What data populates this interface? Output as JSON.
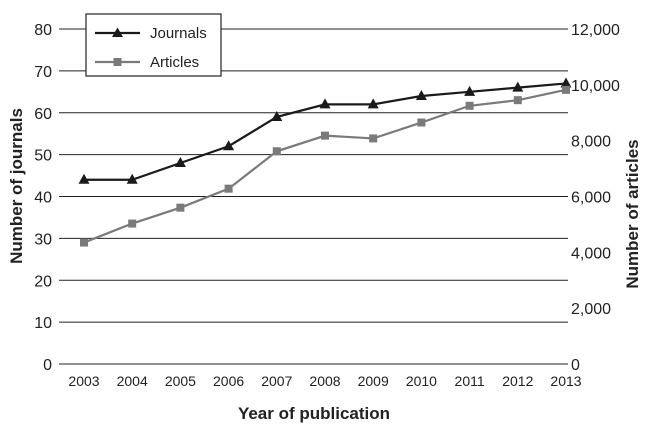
{
  "chart_data": {
    "type": "line",
    "x": [
      "2003",
      "2004",
      "2005",
      "2006",
      "2007",
      "2008",
      "2009",
      "2010",
      "2011",
      "2012",
      "2013"
    ],
    "series": [
      {
        "name": "Journals",
        "axis": "left",
        "marker": "triangle",
        "color": "#1a1a1a",
        "values": [
          44,
          44,
          48,
          52,
          59,
          62,
          62,
          64,
          65,
          66,
          67
        ]
      },
      {
        "name": "Articles",
        "axis": "right",
        "marker": "square",
        "color": "#7a7a7a",
        "values": [
          4350,
          5030,
          5600,
          6280,
          7620,
          8180,
          8080,
          8650,
          9250,
          9450,
          9820
        ]
      }
    ],
    "xlabel": "Year of publication",
    "ylabel_left": "Number of journals",
    "ylabel_right": "Number of articles",
    "ylim_left": [
      0,
      80
    ],
    "ylim_right": [
      0,
      12000
    ],
    "yticks_left": [
      "0",
      "10",
      "20",
      "30",
      "40",
      "50",
      "60",
      "70",
      "80"
    ],
    "yticks_right": [
      "0",
      "2,000",
      "4,000",
      "6,000",
      "8,000",
      "10,000",
      "12,000"
    ],
    "grid": true,
    "legend_position": "top-left"
  }
}
